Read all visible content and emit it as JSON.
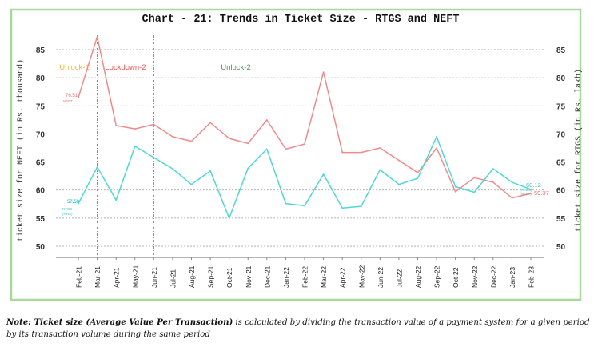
{
  "chart_data": {
    "type": "line",
    "title": "Chart - 21: Trends in Ticket Size - RTGS and NEFT",
    "ylabel_left": "ticket size for NEFT (in Rs. thousand)",
    "ylabel_right": "ticket size for RTGS (in Rs. lakh)",
    "xlabel": "",
    "ylim": [
      50,
      85
    ],
    "yticks": [
      "50",
      "55",
      "60",
      "65",
      "70",
      "75",
      "80",
      "85"
    ],
    "y2lim": [
      50,
      85
    ],
    "y2ticks": [
      "50",
      "55",
      "60",
      "65",
      "70",
      "75",
      "80",
      "85"
    ],
    "grid": true,
    "categories": [
      "Feb-21",
      "Mar-21",
      "Apr-21",
      "May-21",
      "Jun-21",
      "Jul-21",
      "Aug-21",
      "Sep-21",
      "Oct-21",
      "Nov-21",
      "Dec-21",
      "Jan-22",
      "Feb-22",
      "Mar-22",
      "Apr-22",
      "May-22",
      "Jun-22",
      "Jul-22",
      "Aug-22",
      "Sep-22",
      "Oct-22",
      "Nov-22",
      "Dec-22",
      "Jan-23",
      "Feb-23"
    ],
    "series": [
      {
        "name": "NEFT",
        "axis": "left",
        "color": "#f08a8a",
        "values": [
          76.51,
          87.3,
          71.5,
          70.9,
          71.7,
          69.5,
          68.7,
          72.0,
          69.2,
          68.3,
          72.5,
          67.3,
          68.2,
          81.0,
          66.7,
          66.7,
          67.5,
          65.3,
          63.1,
          67.5,
          59.7,
          62.2,
          61.4,
          58.6,
          59.37
        ],
        "start_label": "76.51",
        "start_tag": "NEFT",
        "end_label": "59.37",
        "end_tag": "(NEFT)"
      },
      {
        "name": "RTGS (RHS)",
        "axis": "right",
        "color": "#4fd6d6",
        "values": [
          57.59,
          64.1,
          58.2,
          67.8,
          65.8,
          63.8,
          61.0,
          63.4,
          55.0,
          63.9,
          67.3,
          57.6,
          57.2,
          62.8,
          56.8,
          57.1,
          63.6,
          61.0,
          62.1,
          69.5,
          60.6,
          59.6,
          63.8,
          61.4,
          60.12
        ],
        "start_label": "57.59",
        "start_tag": "RTGS (RHS)",
        "end_label": "60.12",
        "end_tag": "(RTGS)"
      }
    ],
    "phases": [
      {
        "label": "Unlock-1",
        "color": "#f5b942"
      },
      {
        "label": "Lockdown-2",
        "color": "#ee5555"
      },
      {
        "label": "Unlock-2",
        "color": "#4a9a4a"
      }
    ],
    "phase_boundaries": [
      "Mar-21",
      "Jun-21"
    ],
    "boundary_color": "#f06060"
  },
  "note": {
    "lead": "Note: Ticket size (Average Value Per Transaction)",
    "rest": " is calculated by dividing the transaction value of a payment system for a given period by its transaction volume during the same period"
  }
}
